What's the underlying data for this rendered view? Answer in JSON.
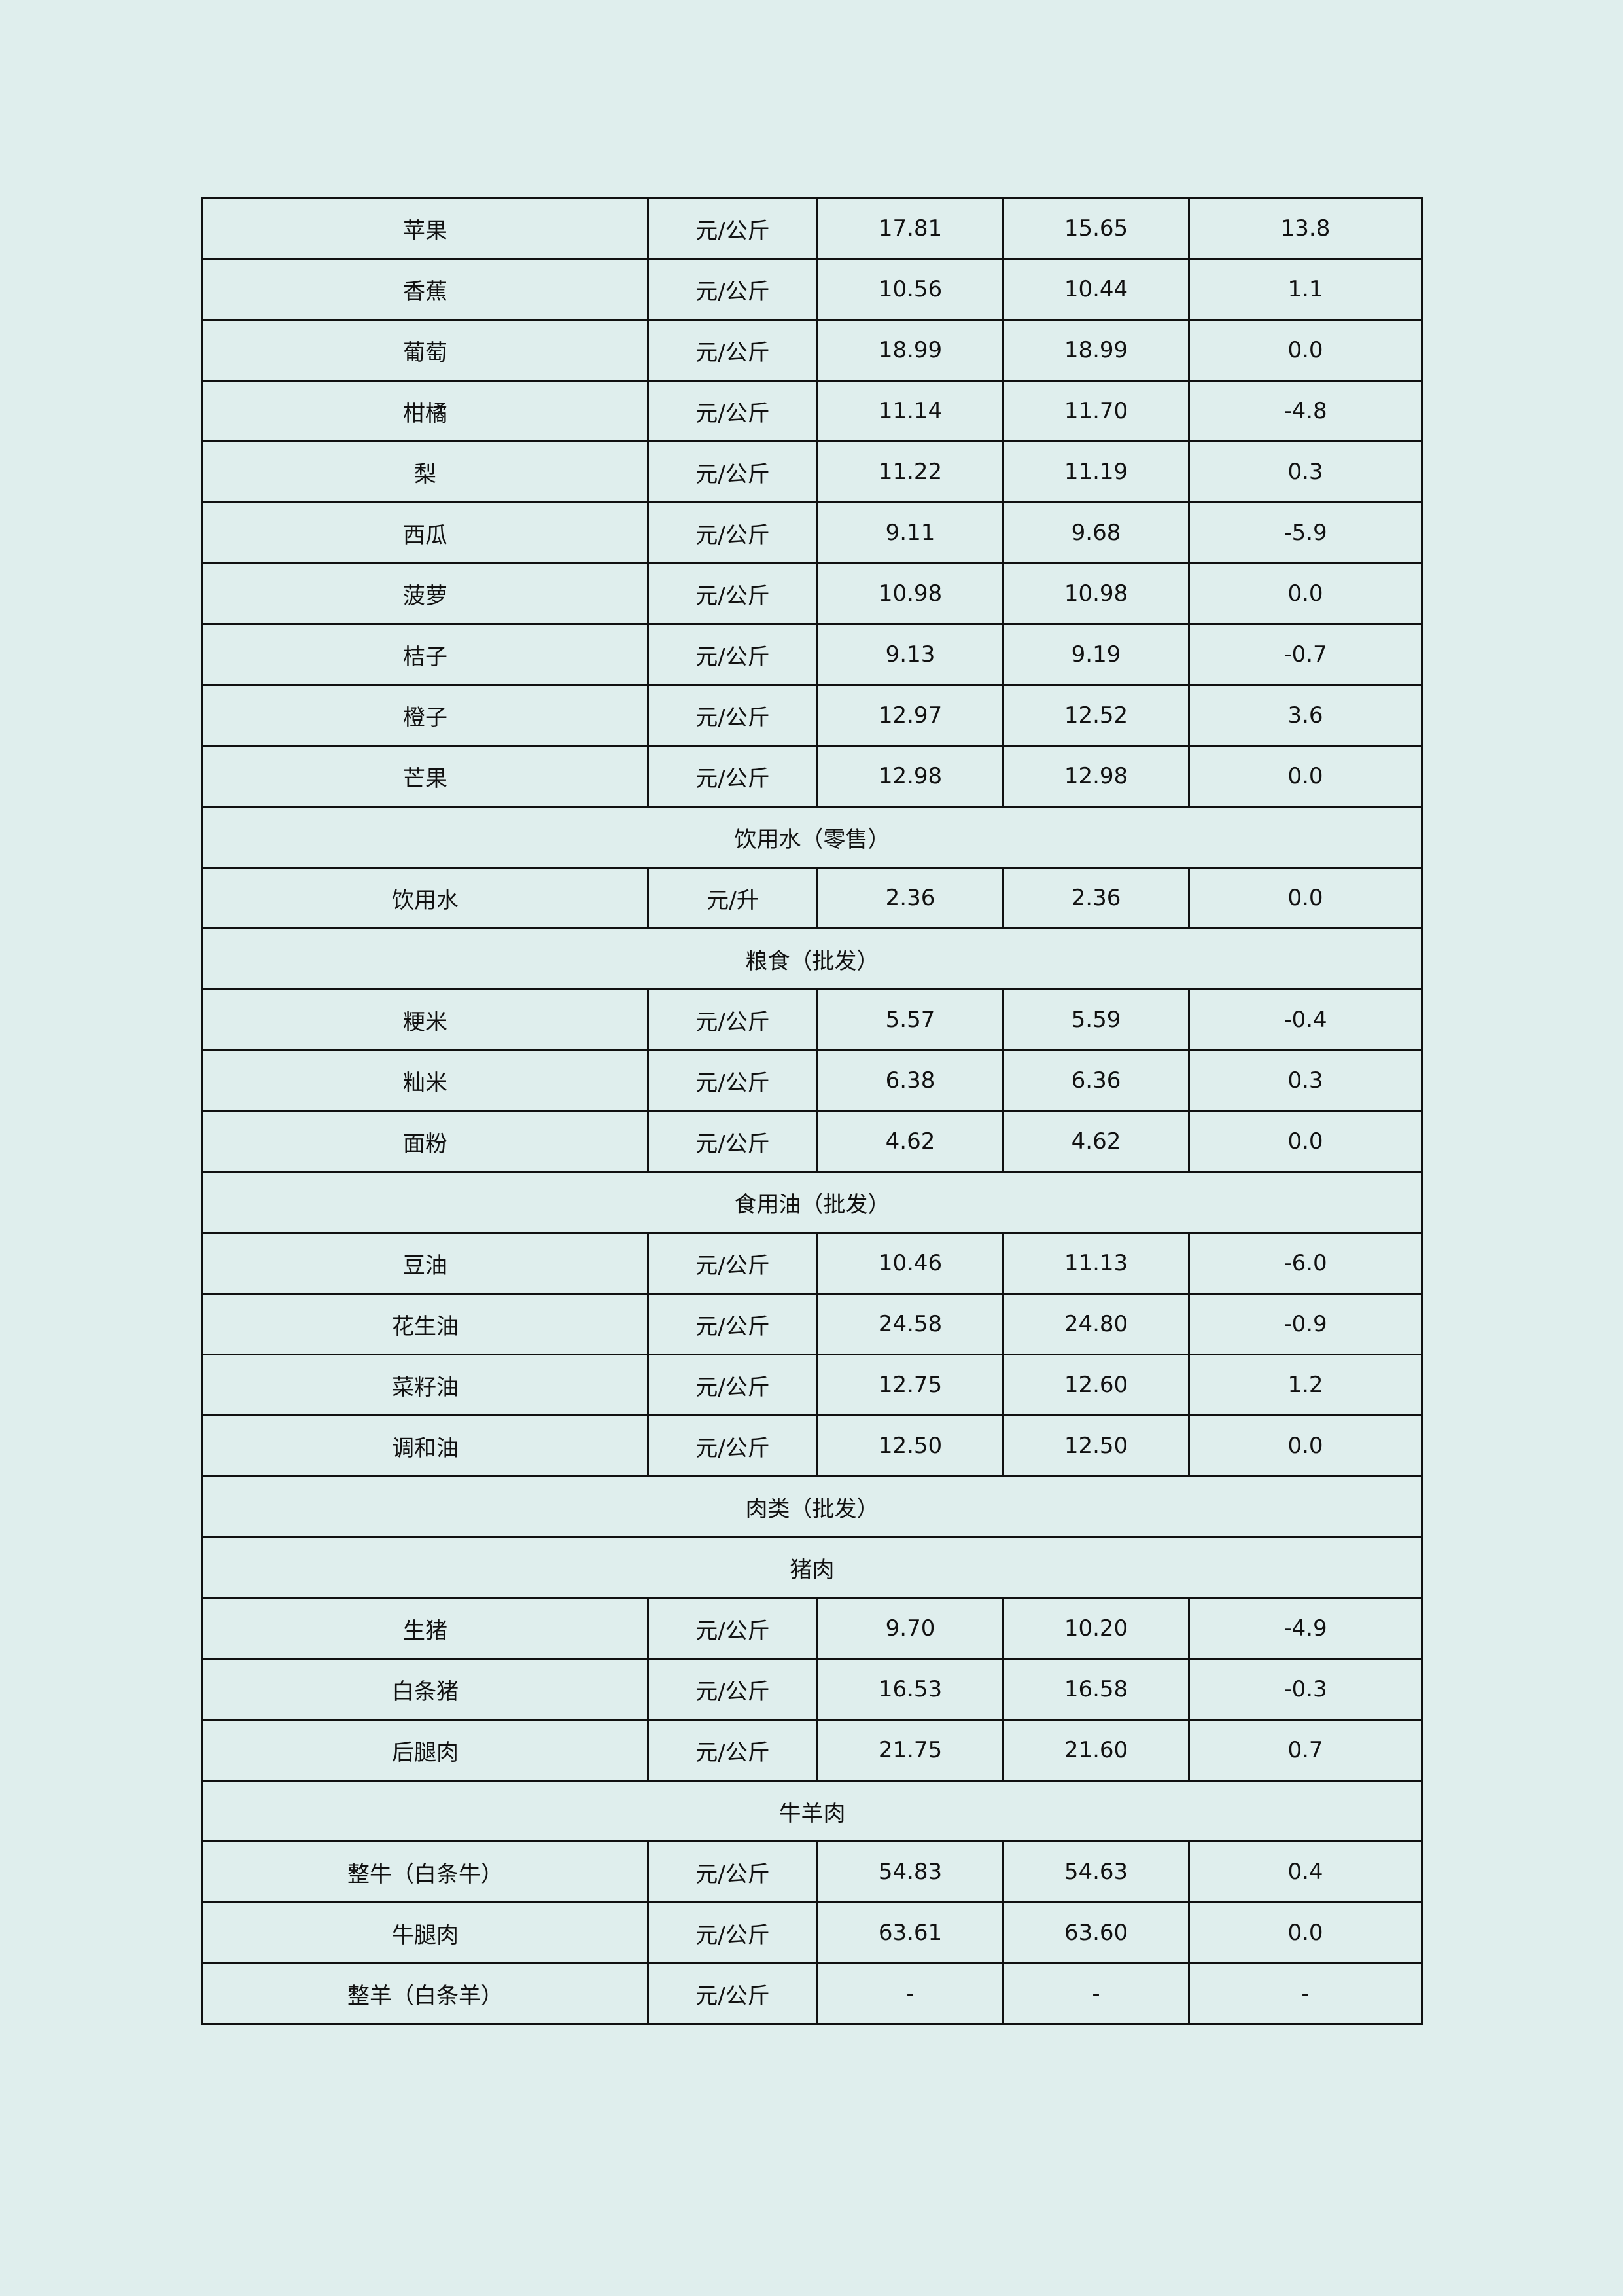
{
  "rows": [
    {
      "name": "苹果",
      "unit": "元/公斤",
      "a": "17.81",
      "b": "15.65",
      "c": "13.8"
    },
    {
      "name": "香蕉",
      "unit": "元/公斤",
      "a": "10.56",
      "b": "10.44",
      "c": "1.1"
    },
    {
      "name": "葡萄",
      "unit": "元/公斤",
      "a": "18.99",
      "b": "18.99",
      "c": "0.0"
    },
    {
      "name": "柑橘",
      "unit": "元/公斤",
      "a": "11.14",
      "b": "11.70",
      "c": "-4.8"
    },
    {
      "name": "梨",
      "unit": "元/公斤",
      "a": "11.22",
      "b": "11.19",
      "c": "0.3"
    },
    {
      "name": "西瓜",
      "unit": "元/公斤",
      "a": "9.11",
      "b": "9.68",
      "c": "-5.9"
    },
    {
      "name": "菠萝",
      "unit": "元/公斤",
      "a": "10.98",
      "b": "10.98",
      "c": "0.0"
    },
    {
      "name": "桔子",
      "unit": "元/公斤",
      "a": "9.13",
      "b": "9.19",
      "c": "-0.7"
    },
    {
      "name": "橙子",
      "unit": "元/公斤",
      "a": "12.97",
      "b": "12.52",
      "c": "3.6"
    },
    {
      "name": "芒果",
      "unit": "元/公斤",
      "a": "12.98",
      "b": "12.98",
      "c": "0.0"
    },
    {
      "section": "饮用水（零售）"
    },
    {
      "name": "饮用水",
      "unit": "元/升",
      "a": "2.36",
      "b": "2.36",
      "c": "0.0"
    },
    {
      "section": "粮食（批发）"
    },
    {
      "name": "粳米",
      "unit": "元/公斤",
      "a": "5.57",
      "b": "5.59",
      "c": "-0.4"
    },
    {
      "name": "籼米",
      "unit": "元/公斤",
      "a": "6.38",
      "b": "6.36",
      "c": "0.3"
    },
    {
      "name": "面粉",
      "unit": "元/公斤",
      "a": "4.62",
      "b": "4.62",
      "c": "0.0"
    },
    {
      "section": "食用油（批发）"
    },
    {
      "name": "豆油",
      "unit": "元/公斤",
      "a": "10.46",
      "b": "11.13",
      "c": "-6.0"
    },
    {
      "name": "花生油",
      "unit": "元/公斤",
      "a": "24.58",
      "b": "24.80",
      "c": "-0.9"
    },
    {
      "name": "菜籽油",
      "unit": "元/公斤",
      "a": "12.75",
      "b": "12.60",
      "c": "1.2"
    },
    {
      "name": "调和油",
      "unit": "元/公斤",
      "a": "12.50",
      "b": "12.50",
      "c": "0.0"
    },
    {
      "section": "肉类（批发）"
    },
    {
      "section": "猪肉"
    },
    {
      "name": "生猪",
      "unit": "元/公斤",
      "a": "9.70",
      "b": "10.20",
      "c": "-4.9"
    },
    {
      "name": "白条猪",
      "unit": "元/公斤",
      "a": "16.53",
      "b": "16.58",
      "c": "-0.3"
    },
    {
      "name": "后腿肉",
      "unit": "元/公斤",
      "a": "21.75",
      "b": "21.60",
      "c": "0.7"
    },
    {
      "section": "牛羊肉"
    },
    {
      "name": "整牛（白条牛）",
      "unit": "元/公斤",
      "a": "54.83",
      "b": "54.63",
      "c": "0.4"
    },
    {
      "name": "牛腿肉",
      "unit": "元/公斤",
      "a": "63.61",
      "b": "63.60",
      "c": "0.0"
    },
    {
      "name": "整羊（白条羊）",
      "unit": "元/公斤",
      "a": "-",
      "b": "-",
      "c": "-"
    }
  ]
}
